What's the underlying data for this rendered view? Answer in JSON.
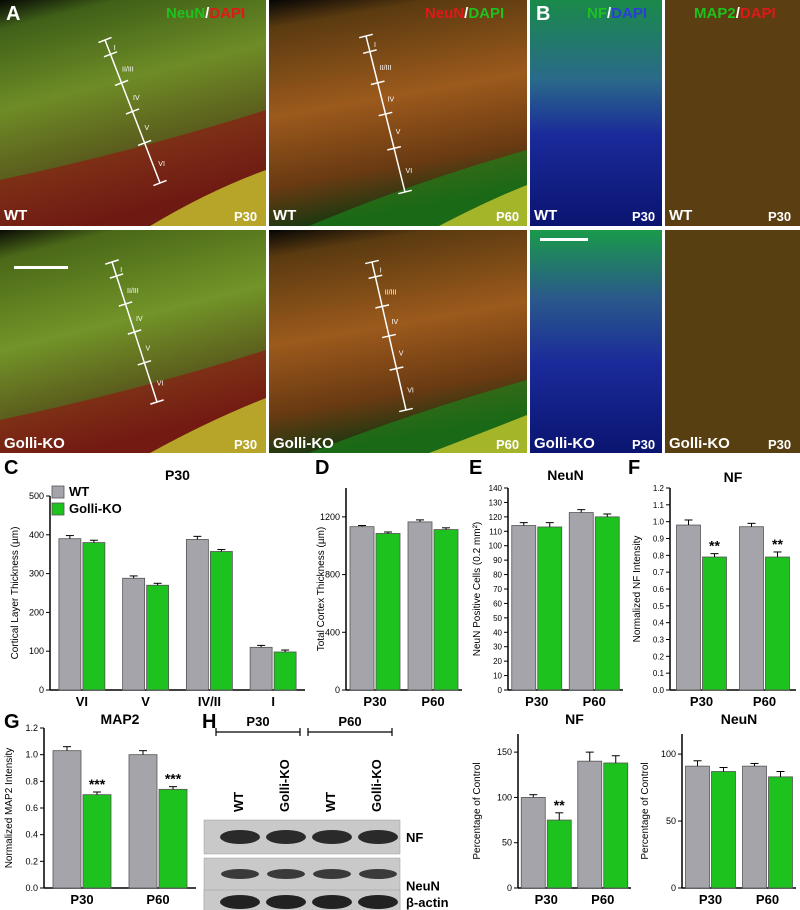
{
  "figure_letters": [
    "A",
    "B",
    "C",
    "D",
    "E",
    "F",
    "G",
    "H"
  ],
  "colors": {
    "green": "#19c219",
    "red": "#e01818",
    "blue": "#2b3fd6",
    "gray": "#a5a4ab",
    "wt_bar": "#a5a4ab",
    "ko_bar": "#1ec21e"
  },
  "micro": {
    "stain_neun_dapi": {
      "a": "NeuN",
      "sep": "/",
      "b": "DAPI"
    },
    "stain_neun_dapi2": {
      "a": "NeuN",
      "sep": "/",
      "b": "DAPI"
    },
    "stain_nf_dapi": {
      "a": "NF",
      "sep": "/",
      "b": "DAPI"
    },
    "stain_map2_dapi": {
      "a": "MAP2",
      "sep": "/",
      "b": "DAPI"
    },
    "genotype_wt": "WT",
    "genotype_ko": "Golli-KO",
    "age_p30": "P30",
    "age_p60": "P60",
    "layers_a1": [
      "I",
      "II/III",
      "IV",
      "V",
      "VI"
    ],
    "layers_a2": [
      "I",
      "II/III",
      "IV",
      "V",
      "VI"
    ],
    "layers_a3": [
      "I",
      "II/III",
      "IV",
      "V",
      "VI"
    ],
    "layers_a4": [
      "I",
      "II/III",
      "IV",
      "V",
      "VI"
    ]
  },
  "chart_data": [
    {
      "id": "C",
      "type": "bar",
      "title": "P30",
      "ylabel": "Cortical Layer Thickness (µm)",
      "categories": [
        "VI",
        "V",
        "IV/II",
        "I"
      ],
      "ylim": [
        0,
        500
      ],
      "yticks": [
        0,
        100,
        200,
        300,
        400,
        500
      ],
      "series": [
        {
          "name": "WT",
          "values": [
            390,
            288,
            388,
            110
          ],
          "errors": [
            8,
            6,
            8,
            5
          ]
        },
        {
          "name": "Golli-KO",
          "values": [
            380,
            270,
            357,
            98
          ],
          "errors": [
            6,
            5,
            5,
            5
          ]
        }
      ],
      "legend": [
        "WT",
        "Golli-KO"
      ],
      "significance": []
    },
    {
      "id": "D",
      "type": "bar",
      "title": "",
      "ylabel": "Total Cortex Thickness (µm)",
      "categories": [
        "P30",
        "P60"
      ],
      "ylim": [
        0,
        1400
      ],
      "yticks": [
        0,
        400,
        800,
        1200
      ],
      "series": [
        {
          "values": [
            1132,
            1165
          ],
          "errors": [
            8,
            14
          ]
        },
        {
          "values": [
            1085,
            1112
          ],
          "errors": [
            10,
            12
          ]
        }
      ],
      "significance": []
    },
    {
      "id": "E",
      "type": "bar",
      "title": "NeuN",
      "ylabel": "NeuN Positive Cells (0.2 mm²)",
      "categories": [
        "P30",
        "P60"
      ],
      "ylim": [
        0,
        140
      ],
      "yticks": [
        0,
        10,
        20,
        30,
        40,
        50,
        60,
        70,
        80,
        90,
        100,
        110,
        120,
        130,
        140
      ],
      "series": [
        {
          "values": [
            114,
            123
          ],
          "errors": [
            2,
            2
          ]
        },
        {
          "values": [
            113,
            120
          ],
          "errors": [
            3,
            2
          ]
        }
      ],
      "significance": []
    },
    {
      "id": "F",
      "type": "bar",
      "title": "NF",
      "ylabel": "Normalized NF Intensity",
      "categories": [
        "P30",
        "P60"
      ],
      "ylim": [
        0,
        1.2
      ],
      "yticks": [
        0,
        0.1,
        0.2,
        0.3,
        0.4,
        0.5,
        0.6,
        0.7,
        0.8,
        0.9,
        1.0,
        1.1,
        1.2
      ],
      "series": [
        {
          "values": [
            0.98,
            0.97
          ],
          "errors": [
            0.03,
            0.02
          ]
        },
        {
          "values": [
            0.79,
            0.79
          ],
          "errors": [
            0.02,
            0.03
          ]
        }
      ],
      "significance": [
        "**",
        "**"
      ]
    },
    {
      "id": "G",
      "type": "bar",
      "title": "MAP2",
      "ylabel": "Normalized MAP2 Intensity",
      "categories": [
        "P30",
        "P60"
      ],
      "ylim": [
        0,
        1.2
      ],
      "yticks": [
        0,
        0.2,
        0.4,
        0.6,
        0.8,
        1.0,
        1.2
      ],
      "series": [
        {
          "values": [
            1.03,
            1.0
          ],
          "errors": [
            0.03,
            0.03
          ]
        },
        {
          "values": [
            0.7,
            0.74
          ],
          "errors": [
            0.02,
            0.02
          ]
        }
      ],
      "significance": [
        "***",
        "***"
      ]
    },
    {
      "id": "H_NF",
      "type": "bar",
      "title": "NF",
      "ylabel": "Percentage of Control",
      "categories": [
        "P30",
        "P60"
      ],
      "ylim": [
        0,
        170
      ],
      "yticks": [
        0,
        50,
        100,
        150
      ],
      "series": [
        {
          "values": [
            100,
            140
          ],
          "errors": [
            3,
            10
          ]
        },
        {
          "values": [
            75,
            138
          ],
          "errors": [
            8,
            8
          ]
        }
      ],
      "significance": [
        "**",
        ""
      ]
    },
    {
      "id": "H_NeuN",
      "type": "bar",
      "title": "NeuN",
      "ylabel": "Percentage of Control",
      "categories": [
        "P30",
        "P60"
      ],
      "ylim": [
        0,
        115
      ],
      "yticks": [
        0,
        50,
        100
      ],
      "series": [
        {
          "values": [
            91,
            91
          ],
          "errors": [
            4,
            2
          ]
        },
        {
          "values": [
            87,
            83
          ],
          "errors": [
            3,
            4
          ]
        }
      ],
      "significance": []
    }
  ],
  "western": {
    "groups": [
      "P30",
      "P60"
    ],
    "lanes": [
      "WT",
      "Golli-KO",
      "WT",
      "Golli-KO"
    ],
    "rows": [
      "NF",
      "NeuN",
      "β-actin"
    ]
  }
}
